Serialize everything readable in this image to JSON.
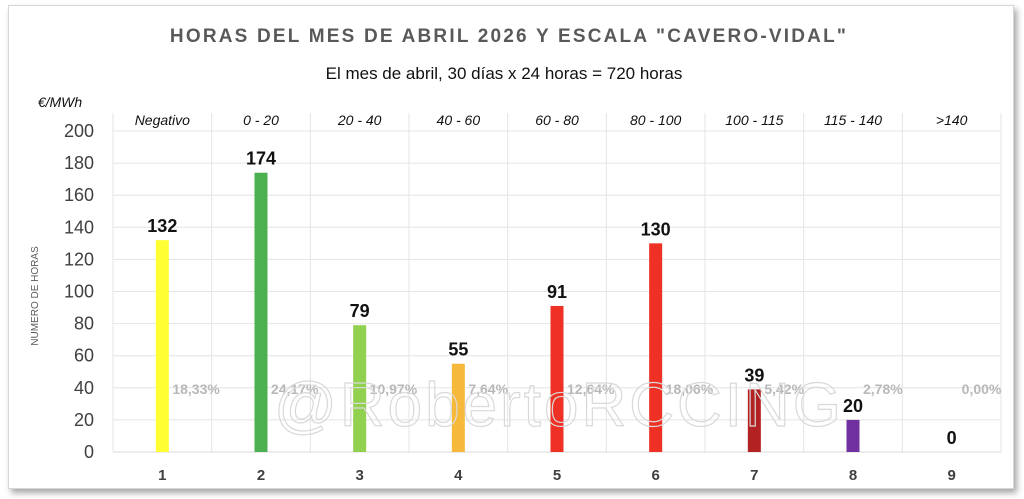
{
  "chart_data": {
    "type": "bar",
    "title": "HORAS DEL MES DE ABRIL 2026 Y ESCALA \"CAVERO-VIDAL\"",
    "subtitle": "El mes de abril, 30 días x 24 horas  = 720 horas",
    "unit_label": "€/MWh",
    "ylabel": "NUMERO DE HORAS",
    "ylim": [
      0,
      200
    ],
    "yticks": [
      "0",
      "20",
      "40",
      "60",
      "80",
      "100",
      "120",
      "140",
      "160",
      "180",
      "200"
    ],
    "categories": [
      "1",
      "2",
      "3",
      "4",
      "5",
      "6",
      "7",
      "8",
      "9"
    ],
    "price_ranges": [
      "Negativo",
      "0 - 20",
      "20 - 40",
      "40 - 60",
      "60 - 80",
      "80 - 100",
      "100 - 115",
      "115 - 140",
      ">140"
    ],
    "values": [
      132,
      174,
      79,
      55,
      91,
      130,
      39,
      20,
      0
    ],
    "value_labels": [
      "132",
      "174",
      "79",
      "55",
      "91",
      "130",
      "39",
      "20",
      "0"
    ],
    "percentages": [
      "18,33%",
      "24,17%",
      "10,97%",
      "7,64%",
      "12,64%",
      "18,06%",
      "5,42%",
      "2,78%",
      "0,00%"
    ],
    "colors": [
      "#ffff33",
      "#4caf50",
      "#92d050",
      "#f6b93b",
      "#ee3124",
      "#ee3124",
      "#b22222",
      "#7030a0",
      "#888888"
    ],
    "grid": true,
    "legend": "none",
    "watermark": "@RobertoRCCING"
  }
}
